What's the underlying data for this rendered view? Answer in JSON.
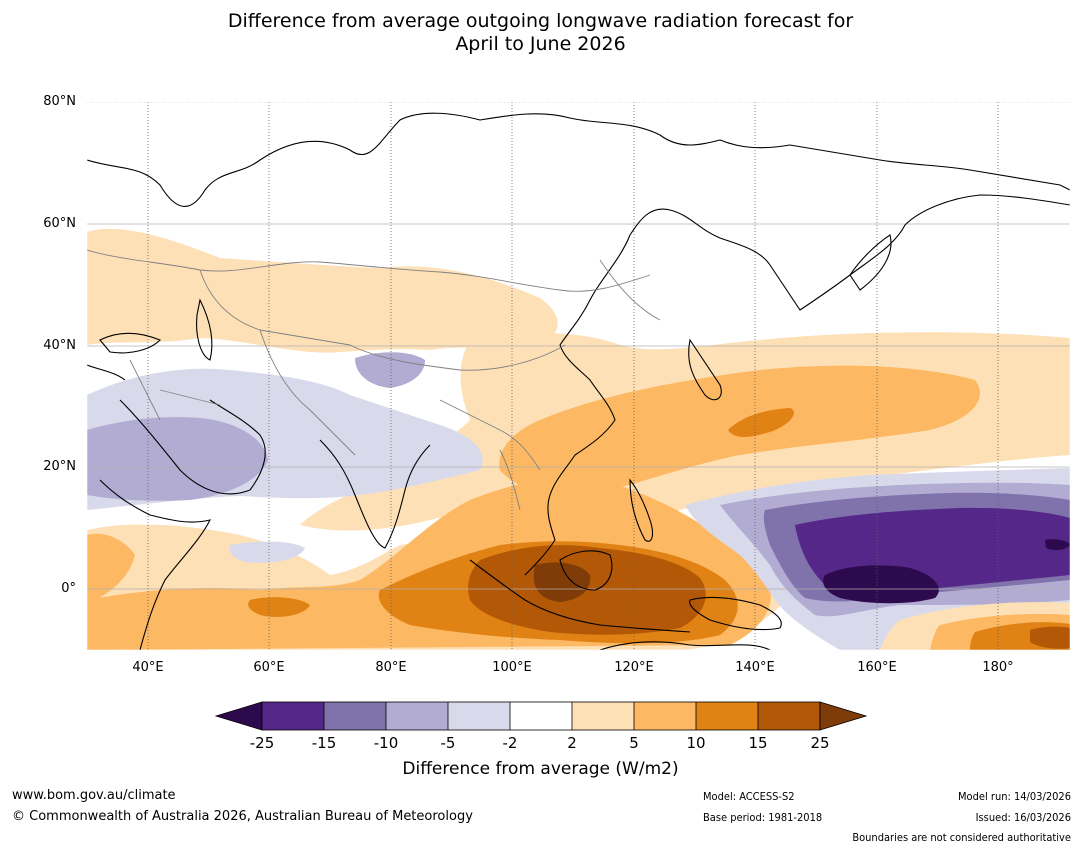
{
  "title": {
    "line1": "Difference from average outgoing longwave radiation forecast for",
    "line2": "April to June 2026"
  },
  "axes": {
    "lat_labels": [
      "80°N",
      "60°N",
      "40°N",
      "20°N",
      "0°"
    ],
    "lon_labels": [
      "40°E",
      "60°E",
      "80°E",
      "100°E",
      "120°E",
      "140°E",
      "160°E",
      "180°"
    ]
  },
  "colorbar": {
    "labels": [
      "-25",
      "-15",
      "-10",
      "-5",
      "-2",
      "2",
      "5",
      "10",
      "15",
      "25"
    ],
    "title": "Difference from average (W/m2)",
    "colors": [
      "#2d0a4e",
      "#542788",
      "#8073ac",
      "#b2abd2",
      "#d8daeb",
      "#ffffff",
      "#fee0b6",
      "#fdb863",
      "#e08214",
      "#b35806",
      "#7f3b08"
    ]
  },
  "footer": {
    "website": "www.bom.gov.au/climate",
    "copyright": "© Commonwealth of Australia 2026, Australian Bureau of Meteorology",
    "model": "Model: ACCESS-S2",
    "base_period": "Base period: 1981-2018",
    "model_run": "Model run: 14/03/2026",
    "issued": "Issued: 16/03/2026",
    "disclaimer": "Boundaries are not considered authoritative"
  }
}
